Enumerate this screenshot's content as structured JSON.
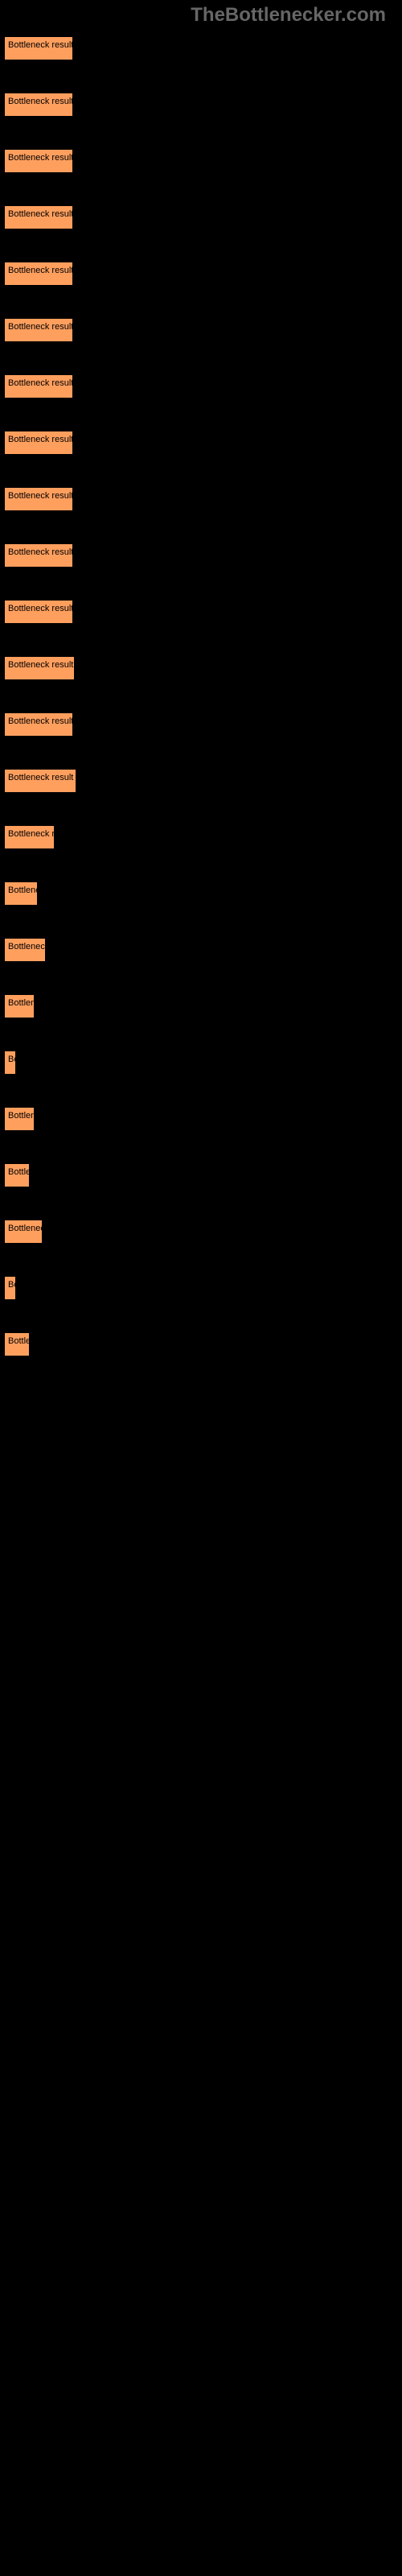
{
  "logo": "TheBottlenecker.com",
  "chart": {
    "type": "bar",
    "bar_color": "#ff9f5e",
    "background_color": "#000000",
    "text_color": "#000000",
    "logo_color": "#666666",
    "bars": [
      {
        "label": "Bottleneck result",
        "width": 86
      },
      {
        "label": "Bottleneck result",
        "width": 86
      },
      {
        "label": "Bottleneck result",
        "width": 86
      },
      {
        "label": "Bottleneck result",
        "width": 86
      },
      {
        "label": "Bottleneck result",
        "width": 86
      },
      {
        "label": "Bottleneck result",
        "width": 86
      },
      {
        "label": "Bottleneck result",
        "width": 86
      },
      {
        "label": "Bottleneck result",
        "width": 86
      },
      {
        "label": "Bottleneck result",
        "width": 86
      },
      {
        "label": "Bottleneck result",
        "width": 86
      },
      {
        "label": "Bottleneck result",
        "width": 86
      },
      {
        "label": "Bottleneck result",
        "width": 88
      },
      {
        "label": "Bottleneck result",
        "width": 86
      },
      {
        "label": "Bottleneck result",
        "width": 90
      },
      {
        "label": "Bottleneck re",
        "width": 63
      },
      {
        "label": "Bottlene",
        "width": 42
      },
      {
        "label": "Bottleneck",
        "width": 52
      },
      {
        "label": "Bottlen",
        "width": 38
      },
      {
        "label": "Bo",
        "width": 15
      },
      {
        "label": "Bottlen",
        "width": 38
      },
      {
        "label": "Bottle",
        "width": 32
      },
      {
        "label": "Bottlenec",
        "width": 48
      },
      {
        "label": "Bo",
        "width": 15
      },
      {
        "label": "Bottle",
        "width": 32
      }
    ]
  }
}
